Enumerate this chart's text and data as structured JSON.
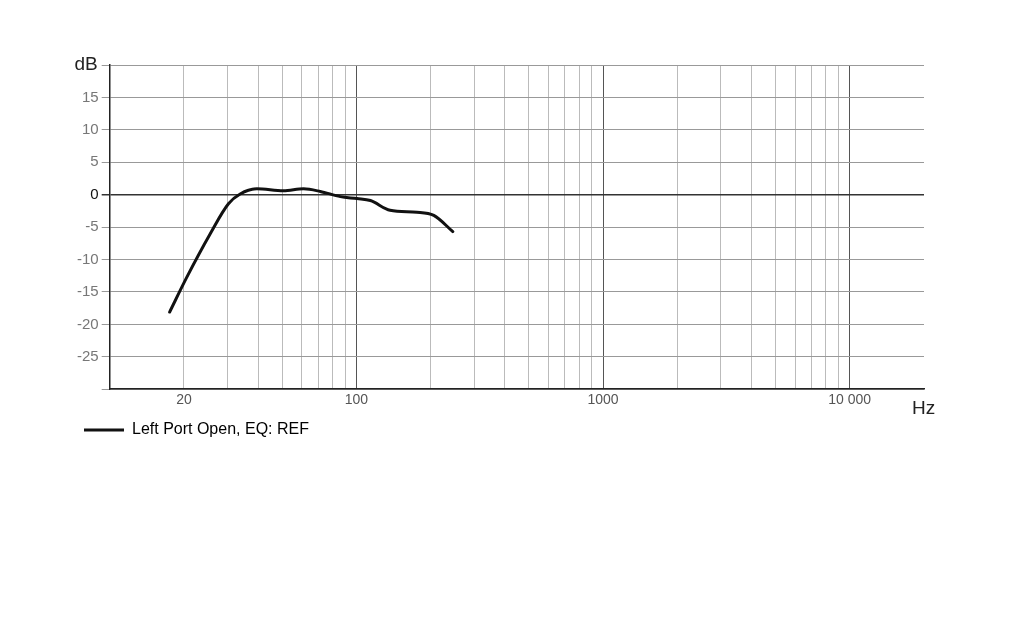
{
  "chart_data": {
    "type": "line",
    "xlabel": "Hz",
    "ylabel": "dB",
    "log": "x",
    "xlim": [
      10,
      20000
    ],
    "xticks": [
      {
        "value": 20,
        "label": "20"
      },
      {
        "value": 30,
        "label": null
      },
      {
        "value": 40,
        "label": null
      },
      {
        "value": 50,
        "label": null
      },
      {
        "value": 60,
        "label": null
      },
      {
        "value": 70,
        "label": null
      },
      {
        "value": 80,
        "label": null
      },
      {
        "value": 90,
        "label": null
      },
      {
        "value": 100,
        "label": "100"
      },
      {
        "value": 200,
        "label": null
      },
      {
        "value": 300,
        "label": null
      },
      {
        "value": 400,
        "label": null
      },
      {
        "value": 500,
        "label": null
      },
      {
        "value": 600,
        "label": null
      },
      {
        "value": 700,
        "label": null
      },
      {
        "value": 800,
        "label": null
      },
      {
        "value": 900,
        "label": null
      },
      {
        "value": 1000,
        "label": "1000"
      },
      {
        "value": 2000,
        "label": null
      },
      {
        "value": 3000,
        "label": null
      },
      {
        "value": 4000,
        "label": null
      },
      {
        "value": 5000,
        "label": null
      },
      {
        "value": 6000,
        "label": null
      },
      {
        "value": 7000,
        "label": null
      },
      {
        "value": 8000,
        "label": null
      },
      {
        "value": 9000,
        "label": null
      },
      {
        "value": 10000,
        "label": "10 000"
      }
    ],
    "ylim": [
      -30,
      20
    ],
    "yticks": [
      {
        "value": -30,
        "label": null
      },
      -25,
      -20,
      -15,
      -10,
      -5,
      0,
      5,
      10,
      15,
      {
        "value": 20,
        "label": null
      }
    ],
    "grid": true,
    "legend": "bottom left",
    "series": [
      {
        "name": "Left Port Open, EQ: REF",
        "color": "#111111",
        "x": [
          17.5,
          20.5,
          25.5,
          30.3,
          33.8,
          39.5,
          50.6,
          61.1,
          71.4,
          86.1,
          100.6,
          114,
          137,
          176,
          206,
          246
        ],
        "values": [
          -18.1,
          -12.8,
          -6.1,
          -1.4,
          0.1,
          0.9,
          0.6,
          0.9,
          0.5,
          -0.3,
          -0.6,
          -0.9,
          -2.4,
          -2.7,
          -3.2,
          -5.7
        ]
      }
    ]
  }
}
